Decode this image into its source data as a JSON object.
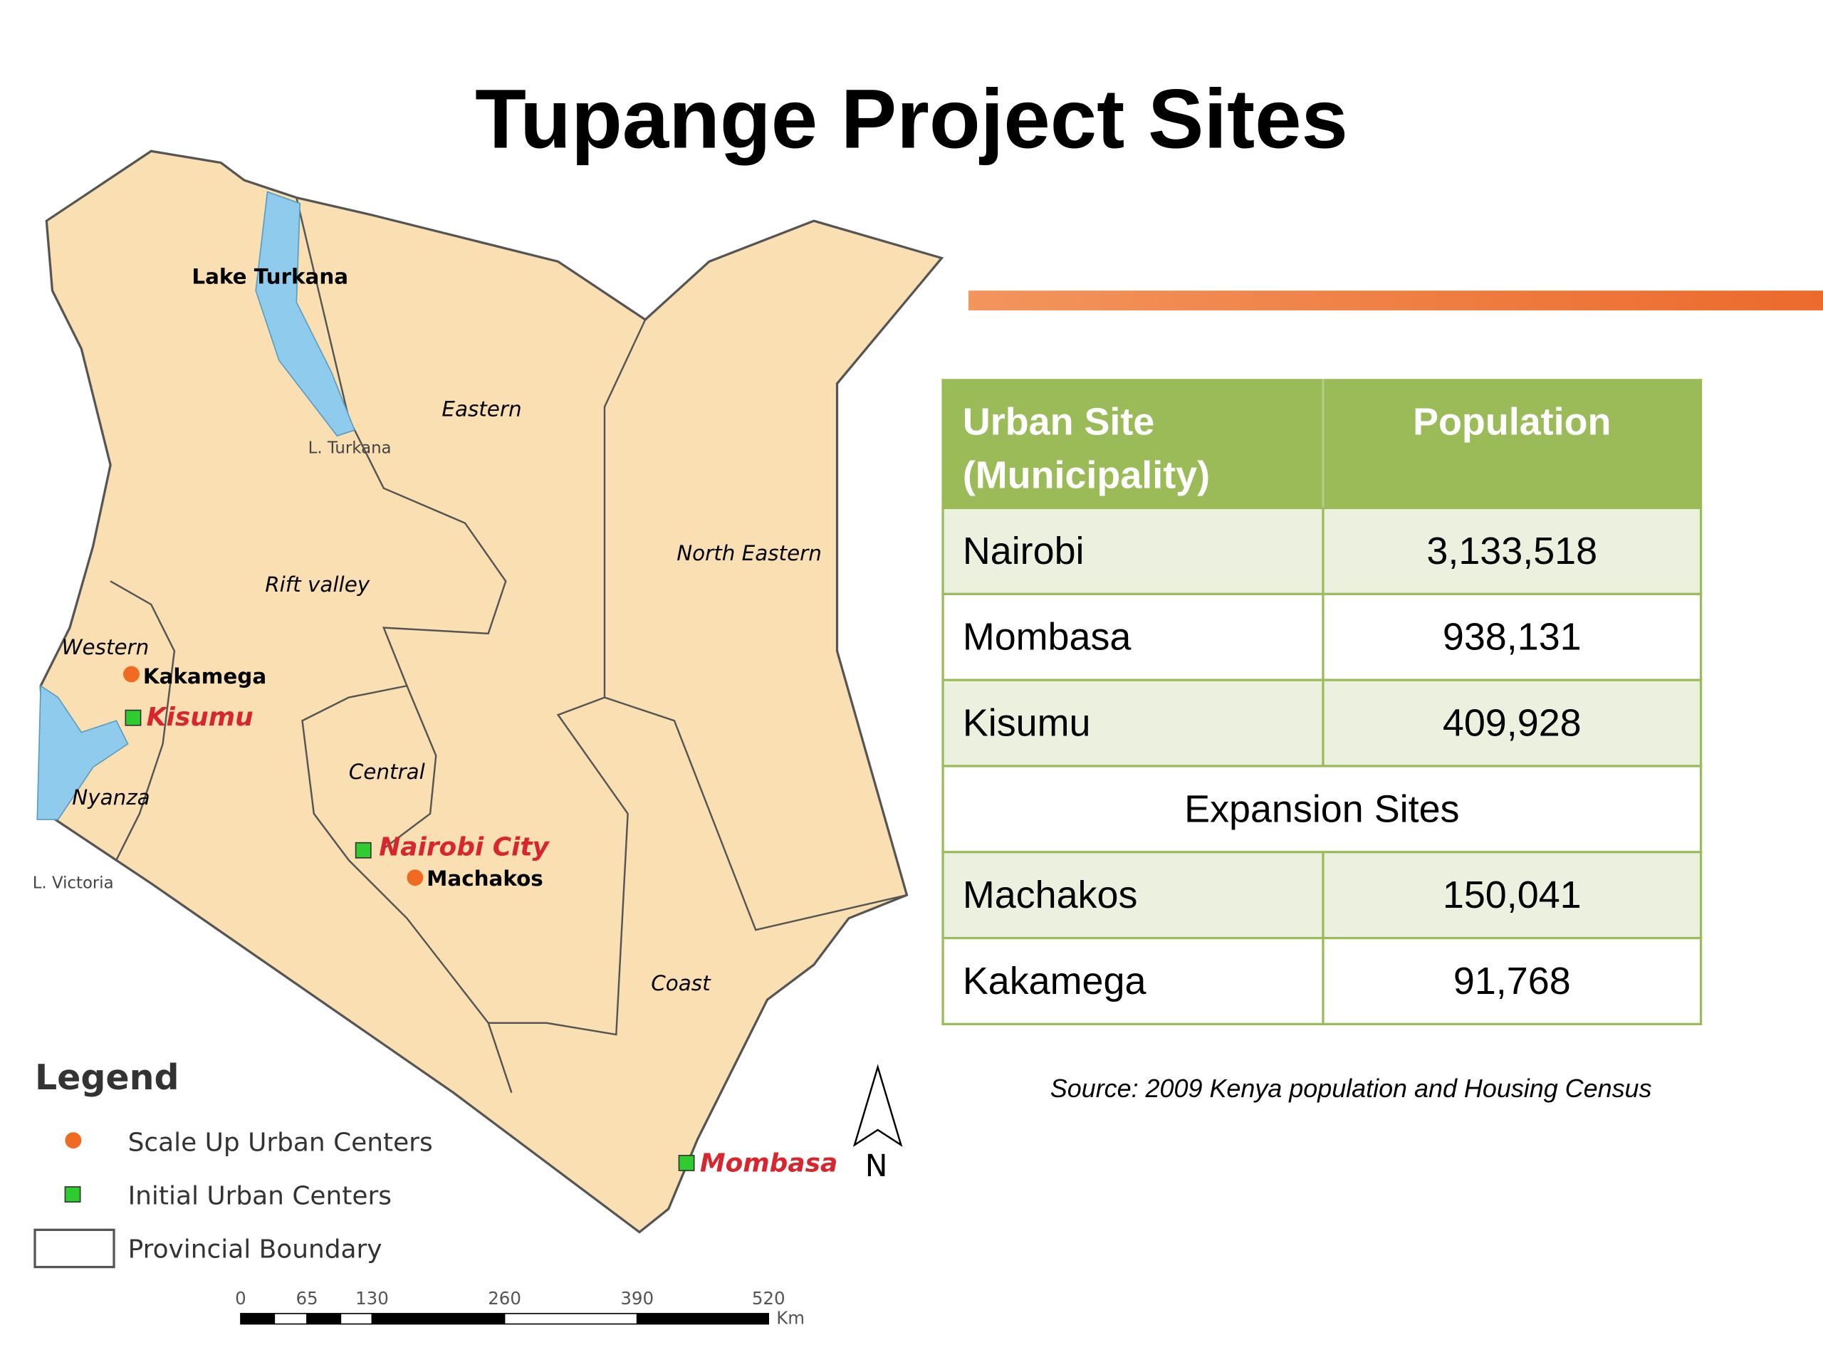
{
  "title": "Tupange Project Sites",
  "map": {
    "labels": [
      "Lake Turkana",
      "L. Turkana",
      "Eastern",
      "North Eastern",
      "Rift valley",
      "Western",
      "Kakamega",
      "Kisumu",
      "Nyanza",
      "Central",
      "Nairobi City",
      "Machakos",
      "L. Victoria",
      "Coast",
      "Mombasa"
    ],
    "north": "N",
    "legend": {
      "title": "Legend",
      "items": [
        "Scale Up Urban Centers",
        "Initial Urban Centers",
        "Provincial Boundary"
      ]
    },
    "scale": {
      "ticks": [
        "0",
        "65",
        "130",
        "260",
        "390",
        "520"
      ],
      "unit": "Km"
    }
  },
  "table": {
    "header": [
      "Urban Site (Municipality)",
      "Population"
    ],
    "rows": [
      [
        "Nairobi",
        "3,133,518"
      ],
      [
        "Mombasa",
        "938,131"
      ],
      [
        "Kisumu",
        "409,928"
      ],
      [
        "Expansion Sites"
      ],
      [
        "Machakos",
        "150,041"
      ],
      [
        "Kakamega",
        "91,768"
      ]
    ]
  },
  "source": "Source: 2009 Kenya population and Housing Census"
}
